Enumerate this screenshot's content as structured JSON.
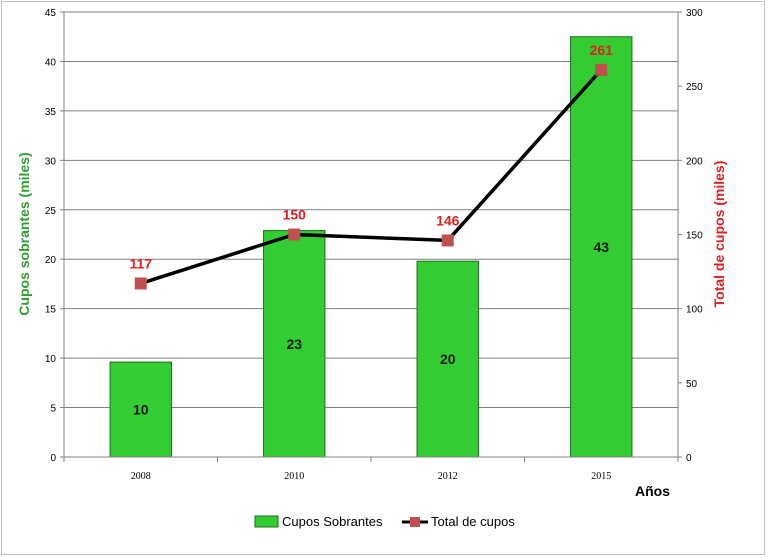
{
  "chart_data": {
    "type": "bar",
    "categories": [
      "2008",
      "2010",
      "2012",
      "2015"
    ],
    "series": [
      {
        "name": "Cupos Sobrantes",
        "type": "bar",
        "axis": "left",
        "values": [
          9.6,
          22.9,
          19.8,
          42.5
        ],
        "labels": [
          "10",
          "23",
          "20",
          "43"
        ]
      },
      {
        "name": "Total de cupos",
        "type": "line",
        "axis": "right",
        "values": [
          117,
          150,
          146,
          261
        ],
        "labels": [
          "117",
          "150",
          "146",
          "261"
        ]
      }
    ],
    "title": "",
    "xlabel": "Años",
    "ylabel": "Cupos sobrantes (miles)",
    "ylabel_right": "Total de cupos (miles)",
    "ylim": [
      0,
      45
    ],
    "ylim_right": [
      0,
      300
    ],
    "yticks": [
      "0",
      "5",
      "10",
      "15",
      "20",
      "25",
      "30",
      "35",
      "40",
      "45"
    ],
    "yticks_right": [
      "0",
      "50",
      "100",
      "150",
      "200",
      "250",
      "300"
    ],
    "grid": true,
    "legend_position": "bottom",
    "colors": {
      "bar": "#33cc33",
      "bar_stroke": "#1e6e1e",
      "line": "#000000",
      "marker": "#c0504d",
      "line_label": "#e02020",
      "left_title": "#2e9e2e",
      "right_title": "#e02020",
      "grid": "#808080"
    }
  }
}
